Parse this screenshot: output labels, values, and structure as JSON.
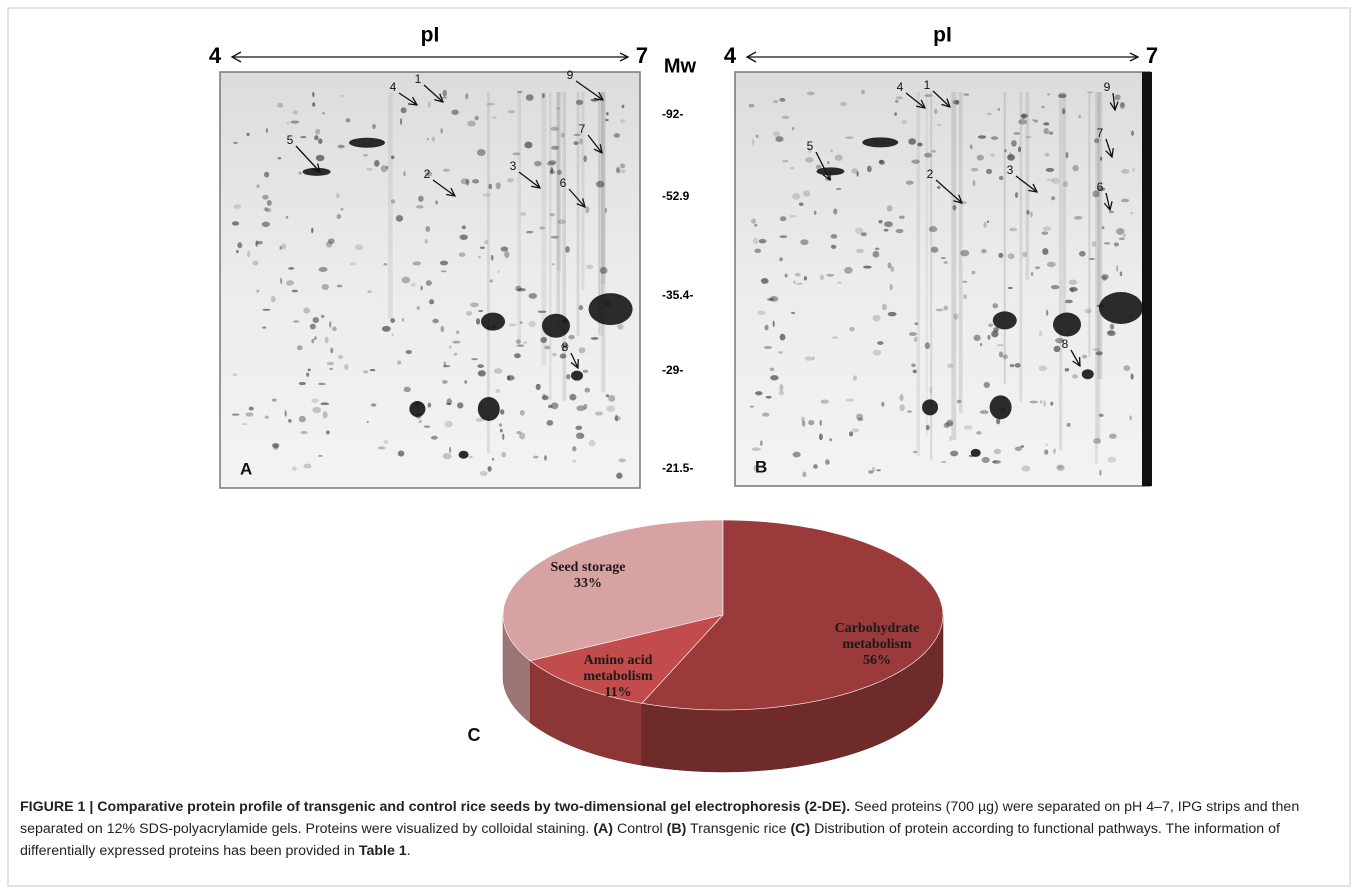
{
  "gels": [
    {
      "panel": "A",
      "pi_title": "pI",
      "pi_start": 4,
      "pi_end": 7,
      "spots": [
        1,
        2,
        3,
        4,
        5,
        6,
        7,
        8,
        9
      ]
    },
    {
      "panel": "B",
      "pi_title": "pI",
      "pi_start": 4,
      "pi_end": 7,
      "spots": [
        1,
        2,
        3,
        4,
        5,
        6,
        7,
        8,
        9
      ]
    }
  ],
  "mw_axis": {
    "title": "Mw",
    "labels": [
      "-92-",
      "-52.9",
      "-35.4-",
      "-29-",
      "-21.5-"
    ]
  },
  "chart_data": {
    "type": "pie",
    "panel": "C",
    "categories": [
      "Seed storage",
      "Amino acid metabolism",
      "Carbohydrate metabolism"
    ],
    "values": [
      33,
      11,
      56
    ],
    "value_labels": [
      "33%",
      "11%",
      "56%"
    ],
    "colors": [
      "#d8a2a2",
      "#c24b4b",
      "#9a3a3a"
    ]
  },
  "caption": {
    "title": "FIGURE 1 | Comparative protein profile of transgenic and control rice seeds by two-dimensional gel electrophoresis (2-DE).",
    "text_1": " Seed proteins (700 µg) were separated on pH 4–7, IPG strips and then separated on 12% SDS-polyacrylamide gels. Proteins were visualized by colloidal staining. ",
    "label_a": "(A)",
    "text_2": " Control ",
    "label_b": "(B)",
    "text_3": " Transgenic rice ",
    "label_c": "(C)",
    "text_4": " Distribution of protein according to functional pathways. The information of differentially expressed proteins has been provided in ",
    "table_ref": "Table 1",
    "text_5": "."
  }
}
